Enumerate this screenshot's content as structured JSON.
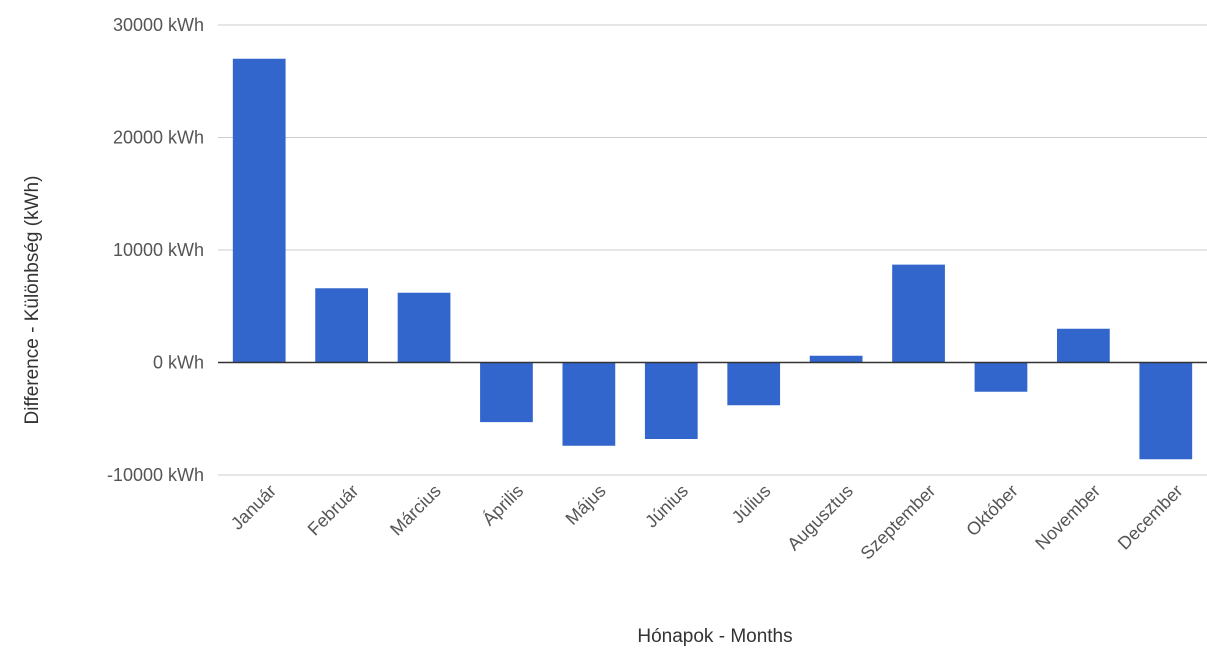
{
  "chart_data": {
    "type": "bar",
    "title": "",
    "xlabel": "Hónapok - Months",
    "ylabel": "Difference - Különbség (kWh)",
    "unit": "kWh",
    "categories": [
      "Január",
      "Február",
      "Március",
      "Április",
      "Május",
      "Június",
      "Július",
      "Augusztus",
      "Szeptember",
      "Október",
      "November",
      "December"
    ],
    "values": [
      27000,
      6600,
      6200,
      -5300,
      -7400,
      -6800,
      -3800,
      600,
      8700,
      -2600,
      3000,
      -8600
    ],
    "ylim": [
      -10000,
      30000
    ],
    "yticks": [
      30000,
      20000,
      10000,
      0,
      -10000
    ],
    "ytick_labels": [
      "30000 kWh",
      "20000 kWh",
      "10000 kWh",
      "0 kWh",
      "-10000 kWh"
    ],
    "grid": true,
    "legend": "none",
    "bar_color": "#3366cc",
    "grid_color": "#cccccc",
    "baseline_color": "#333333"
  }
}
